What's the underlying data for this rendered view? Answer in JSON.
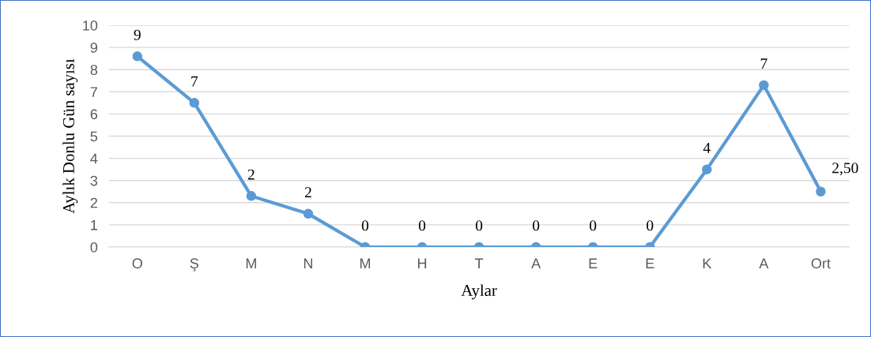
{
  "chart_data": {
    "type": "line",
    "xlabel": "Aylar",
    "ylabel": "Aylık Donlu Gün sayısı",
    "categories": [
      "O",
      "Ş",
      "M",
      "N",
      "M",
      "H",
      "T",
      "A",
      "E",
      "E",
      "K",
      "A",
      "Ort"
    ],
    "series": [
      {
        "color": "#5b9bd5",
        "values": [
          8.6,
          6.5,
          2.3,
          1.5,
          0,
          0,
          0,
          0,
          0,
          0,
          3.5,
          7.3,
          2.5
        ],
        "value_labels": [
          "9",
          "7",
          "2",
          "2",
          "0",
          "0",
          "0",
          "0",
          "0",
          "0",
          "4",
          "7",
          "2,50"
        ]
      }
    ],
    "ylim": [
      0,
      10
    ],
    "yticks": [
      0,
      1,
      2,
      3,
      4,
      5,
      6,
      7,
      8,
      9,
      10
    ],
    "grid": "y",
    "marker": "circle",
    "line_style": "solid"
  }
}
